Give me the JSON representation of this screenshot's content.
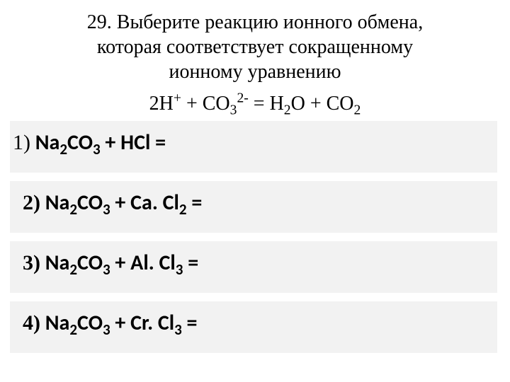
{
  "header": {
    "line1": "29. Выберите реакцию ионного обмена,",
    "line2": "которая соответствует сокращенному",
    "line3": "ионному уравнению"
  },
  "equation": {
    "display": "2H+ + CO32- = H2O + CO2",
    "parts": {
      "p1": "2H",
      "sup1": "+",
      "p2": " + CO",
      "sub1": "3",
      "sup2": "2-",
      "p3": " = H",
      "sub2": "2",
      "p4": "O + CO",
      "sub3": "2"
    }
  },
  "options": [
    {
      "num": "1)",
      "lhs_a": "Na",
      "lhs_a_sub": "2",
      "lhs_b": "CO",
      "lhs_b_sub": "3",
      "plus": " + ",
      "rhs": "HCl",
      "rhs_sub": "",
      "eq": " ="
    },
    {
      "num": "2)",
      "lhs_a": "Na",
      "lhs_a_sub": "2",
      "lhs_b": "CO",
      "lhs_b_sub": "3",
      "plus": " + ",
      "rhs": "Ca. Cl",
      "rhs_sub": "2",
      "eq": " ="
    },
    {
      "num": "3)",
      "lhs_a": "Na",
      "lhs_a_sub": "2",
      "lhs_b": "CO",
      "lhs_b_sub": "3",
      "plus": " + ",
      "rhs": "Al. Cl",
      "rhs_sub": "3",
      "eq": " ="
    },
    {
      "num": "4)",
      "lhs_a": "Na",
      "lhs_a_sub": "2",
      "lhs_b": "CO",
      "lhs_b_sub": "3",
      "plus": " + ",
      "rhs": "Cr. Cl",
      "rhs_sub": "3",
      "eq": " ="
    }
  ],
  "colors": {
    "row_bg": "#f2f2f2",
    "text": "#000000",
    "page_bg": "#ffffff"
  }
}
